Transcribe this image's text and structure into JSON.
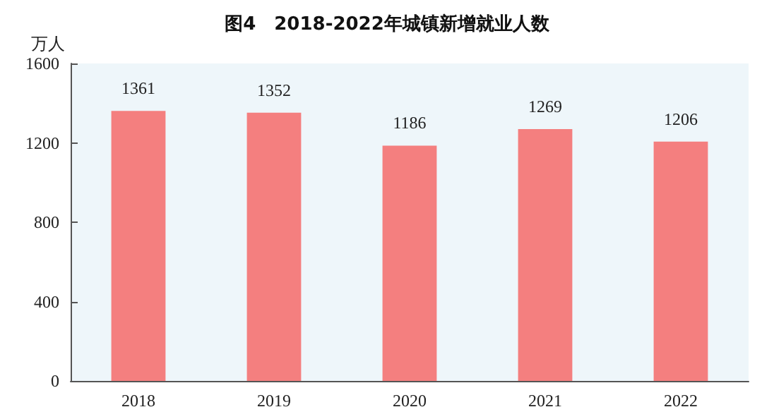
{
  "chart_data": {
    "type": "bar",
    "title": "图4　2018-2022年城镇新增就业人数",
    "ylabel": "万人",
    "categories": [
      "2018",
      "2019",
      "2020",
      "2021",
      "2022"
    ],
    "values": [
      1361,
      1352,
      1186,
      1269,
      1206
    ],
    "color": "#f47f7f",
    "ylim": [
      0,
      1600
    ],
    "yticks": [
      0,
      400,
      800,
      1200,
      1600
    ],
    "grid": false,
    "data_labels": true
  }
}
